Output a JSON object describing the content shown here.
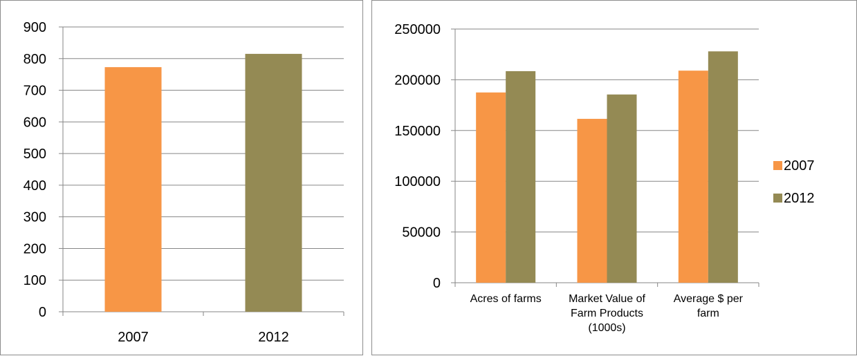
{
  "colors": {
    "s2007": "#F79646",
    "s2012": "#948A54",
    "grid": "#868686"
  },
  "chart_data": [
    {
      "type": "bar",
      "categories": [
        "2007",
        "2012"
      ],
      "values": [
        773,
        815
      ],
      "ylim": [
        0,
        900
      ],
      "yticks": [
        0,
        100,
        200,
        300,
        400,
        500,
        600,
        700,
        800,
        900
      ],
      "grid": true,
      "legend": "none"
    },
    {
      "type": "bar",
      "categories": [
        "Acres of farms",
        "Market Value of Farm Products (1000s)",
        "Average $ per farm"
      ],
      "category_lines": [
        [
          "Acres of farms"
        ],
        [
          "Market Value of",
          "Farm Products",
          "(1000s)"
        ],
        [
          "Average $ per",
          "farm"
        ]
      ],
      "series": [
        {
          "name": "2007",
          "values": [
            187500,
            161500,
            209000
          ]
        },
        {
          "name": "2012",
          "values": [
            208500,
            185500,
            228000
          ]
        }
      ],
      "ylim": [
        0,
        250000
      ],
      "yticks": [
        0,
        50000,
        100000,
        150000,
        200000,
        250000
      ],
      "grid": true,
      "legend": "right"
    }
  ]
}
